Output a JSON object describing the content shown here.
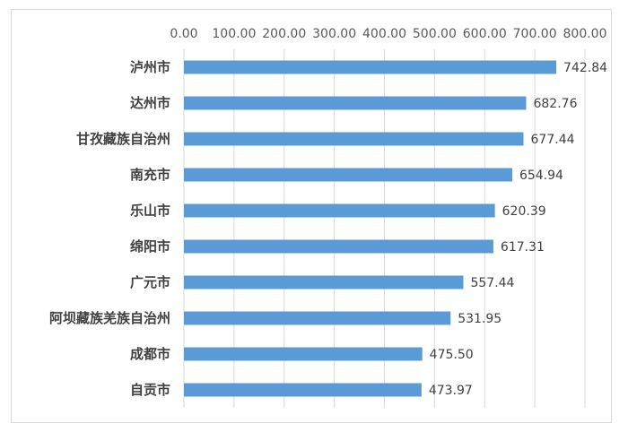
{
  "chart_data": {
    "type": "bar",
    "orientation": "horizontal",
    "title": "",
    "xlabel": "",
    "ylabel": "",
    "xlim": [
      0,
      800
    ],
    "ticks": [
      "0.00",
      "100.00",
      "200.00",
      "300.00",
      "400.00",
      "500.00",
      "600.00",
      "700.00",
      "800.00"
    ],
    "tick_label_position": "top",
    "grid": "vertical",
    "bar_color": "#5b9bd5",
    "categories": [
      "泸州市",
      "达州市",
      "甘孜藏族自治州",
      "南充市",
      "乐山市",
      "绵阳市",
      "广元市",
      "阿坝藏族羌族自治州",
      "成都市",
      "自贡市"
    ],
    "values": [
      742.84,
      682.76,
      677.44,
      654.94,
      620.39,
      617.31,
      557.44,
      531.95,
      475.5,
      473.97
    ],
    "value_labels": [
      "742.84",
      "682.76",
      "677.44",
      "654.94",
      "620.39",
      "617.31",
      "557.44",
      "531.95",
      "475.50",
      "473.97"
    ]
  }
}
